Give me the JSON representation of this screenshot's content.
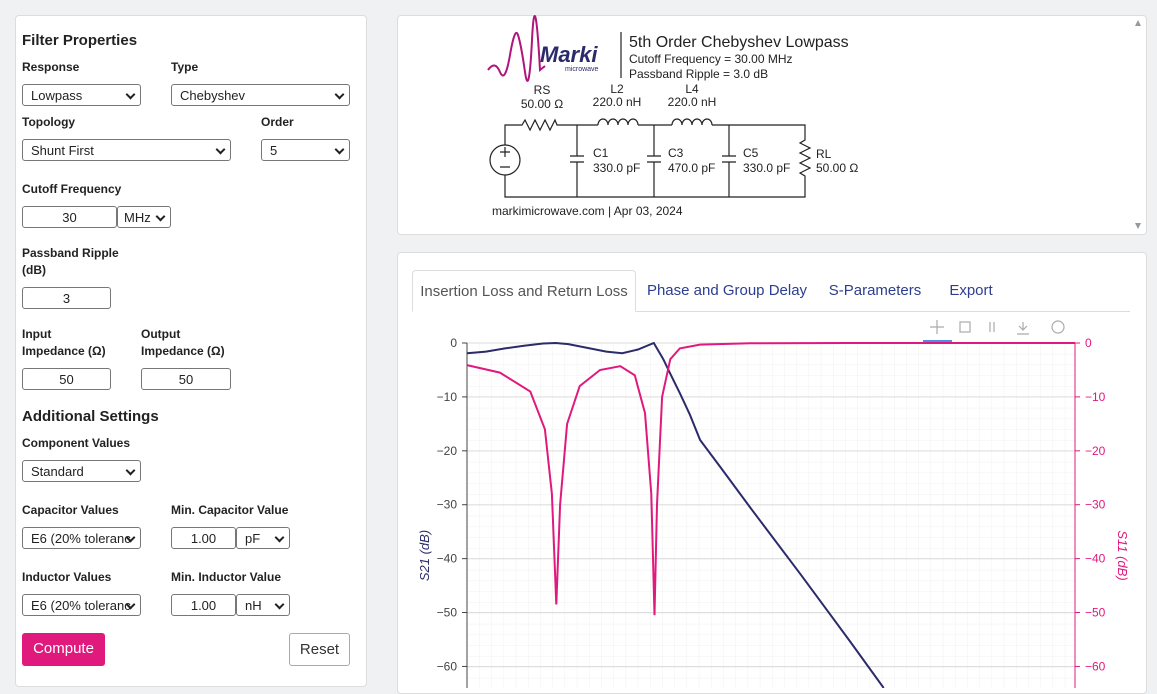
{
  "filter_properties": {
    "heading": "Filter Properties",
    "response": {
      "label": "Response",
      "value": "Lowpass"
    },
    "type": {
      "label": "Type",
      "value": "Chebyshev"
    },
    "topology": {
      "label": "Topology",
      "value": "Shunt First"
    },
    "order": {
      "label": "Order",
      "value": "5"
    },
    "cutoff_frequency": {
      "label": "Cutoff Frequency",
      "value": "30",
      "unit": "MHz"
    },
    "passband_ripple": {
      "label": "Passband Ripple (dB)",
      "value": "3"
    },
    "input_impedance": {
      "label": "Input Impedance (Ω)",
      "value": "50"
    },
    "output_impedance": {
      "label": "Output Impedance (Ω)",
      "value": "50"
    }
  },
  "additional_settings": {
    "heading": "Additional Settings",
    "component_values": {
      "label": "Component Values",
      "value": "Standard"
    },
    "capacitor_values": {
      "label": "Capacitor Values",
      "value": "E6 (20% toleranc"
    },
    "min_capacitor_value": {
      "label": "Min. Capacitor Value",
      "value": "1.00",
      "unit": "pF"
    },
    "inductor_values": {
      "label": "Inductor Values",
      "value": "E6 (20% toleranc"
    },
    "min_inductor_value": {
      "label": "Min. Inductor Value",
      "value": "1.00",
      "unit": "nH"
    }
  },
  "buttons": {
    "compute": "Compute",
    "reset": "Reset"
  },
  "schematic": {
    "logo": "Marki",
    "logo_sub": "microwave",
    "title": "5th Order Chebyshev Lowpass",
    "cutoff": "Cutoff Frequency = 30.00 MHz",
    "ripple": "Passband Ripple = 3.0 dB",
    "components": [
      {
        "name": "RS",
        "value": "50.00 Ω"
      },
      {
        "name": "L2",
        "value": "220.0 nH"
      },
      {
        "name": "L4",
        "value": "220.0 nH"
      },
      {
        "name": "C1",
        "value": "330.0 pF"
      },
      {
        "name": "C3",
        "value": "470.0 pF"
      },
      {
        "name": "C5",
        "value": "330.0 pF"
      },
      {
        "name": "RL",
        "value": "50.00 Ω"
      }
    ],
    "footer": "markimicrowave.com | Apr 03, 2024"
  },
  "tabs": [
    "Insertion Loss and Return Loss",
    "Phase and Group Delay",
    "S-Parameters",
    "Export"
  ],
  "chart_data": {
    "type": "line",
    "xlim": [
      0,
      96
    ],
    "ylim": [
      -64,
      0
    ],
    "y2lim": [
      -64,
      0
    ],
    "yticks": [
      0,
      {
        "value": -10,
        "label": "−10"
      },
      {
        "value": -20,
        "label": "−20"
      },
      {
        "value": -30,
        "label": "−30"
      },
      {
        "value": -40,
        "label": "−40"
      },
      {
        "value": -50,
        "label": "−50"
      },
      {
        "value": -60,
        "label": "−60"
      }
    ],
    "y2ticks": [
      0,
      {
        "value": -10,
        "label": "−10"
      },
      {
        "value": -20,
        "label": "−20"
      },
      {
        "value": -30,
        "label": "−30"
      },
      {
        "value": -40,
        "label": "−40"
      },
      {
        "value": -50,
        "label": "−50"
      },
      {
        "value": -60,
        "label": "−60"
      }
    ],
    "ylabel": "S21 (dB)",
    "y2label": "S11 (dB)",
    "grid": true,
    "series": [
      {
        "color": "#2b2b6b",
        "x": [
          0,
          3,
          6,
          9,
          12,
          14,
          16,
          19,
          22,
          24.5,
          27,
          29.5,
          31,
          32,
          33.6,
          35.2,
          36.8,
          40,
          44.7,
          52.6,
          60.5,
          65.8
        ],
        "values": [
          -1.9,
          -1.6,
          -1.0,
          -0.5,
          -0.1,
          0,
          -0.2,
          -0.9,
          -1.6,
          -1.9,
          -1.2,
          0,
          -3,
          -5.5,
          -9.3,
          -13.3,
          -18,
          -23,
          -30.5,
          -42.8,
          -55.4,
          -64
        ]
      },
      {
        "color": "#e0197d",
        "axis": "y2",
        "x": [
          0,
          5.2,
          10,
          12.3,
          13.4,
          14.1,
          14.7,
          15.8,
          17.8,
          21,
          24.2,
          26.5,
          28.1,
          29.1,
          29.6,
          30,
          30.8,
          32.1,
          33.6,
          36.8,
          44.7,
          60,
          96
        ],
        "values": [
          -4.1,
          -5.5,
          -9,
          -16,
          -28,
          -48.5,
          -30,
          -15,
          -8,
          -5,
          -4.3,
          -6,
          -13,
          -28,
          -50.5,
          -30,
          -10,
          -3,
          -1,
          -0.3,
          -0.05,
          0,
          0
        ]
      }
    ]
  }
}
